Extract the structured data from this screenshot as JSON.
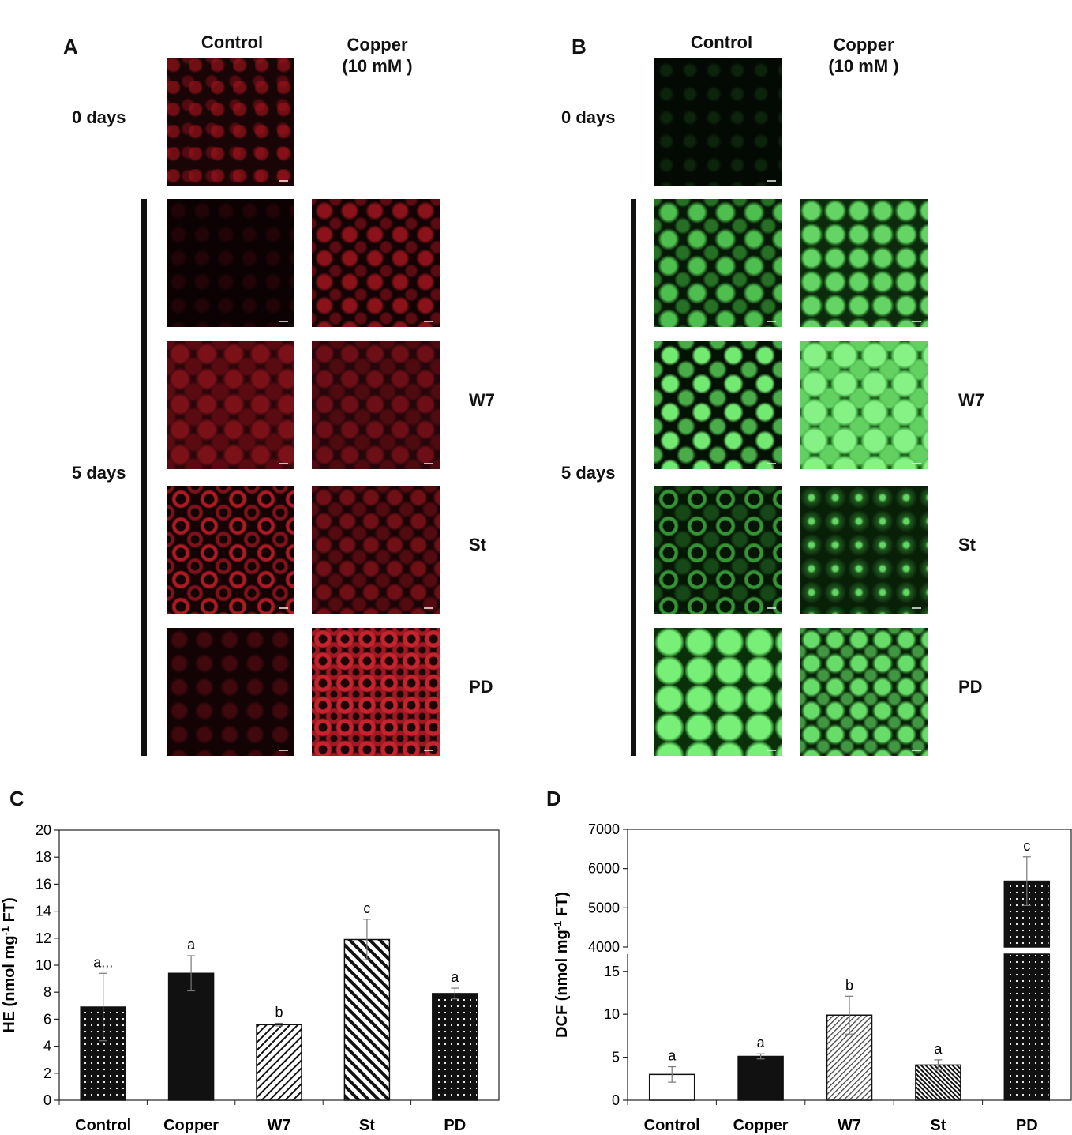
{
  "panel_a": {
    "letter": "A",
    "columns": [
      "Control",
      "Copper",
      "(10 mM )"
    ],
    "row_0": "0 days",
    "row_5": "5 days",
    "treatments": [
      "W7",
      "St",
      "PD"
    ],
    "channel_color": "#c0141e"
  },
  "panel_b": {
    "letter": "B",
    "columns": [
      "Control",
      "Copper",
      "(10 mM )"
    ],
    "row_0": "0 days",
    "row_5": "5 days",
    "treatments": [
      "W7",
      "St",
      "PD"
    ],
    "channel_color": "#3ad43a"
  },
  "chart_data": [
    {
      "panel": "C",
      "type": "bar",
      "ylabel": "HE (nmol mg-1 FT)",
      "ylim": [
        0,
        20
      ],
      "yticks": [
        0,
        2,
        4,
        6,
        8,
        10,
        12,
        14,
        16,
        18,
        20
      ],
      "categories": [
        "Control",
        "Copper",
        "W7",
        "St",
        "PD"
      ],
      "values": [
        6.9,
        9.4,
        5.6,
        11.9,
        7.9
      ],
      "errors": [
        2.5,
        1.3,
        0.1,
        1.5,
        0.4
      ],
      "letters": [
        "a...",
        "a",
        "b",
        "c",
        "a"
      ],
      "fills": [
        "dots",
        "solid",
        "diag-thin",
        "diag-thick",
        "dots"
      ]
    },
    {
      "panel": "D",
      "type": "bar",
      "ylabel": "DCF (nmol mg-1 FT)",
      "broken_axis": true,
      "ylim_lower": [
        0,
        17
      ],
      "ylim_upper": [
        4000,
        7000
      ],
      "yticks_lower": [
        0,
        5,
        10,
        15
      ],
      "yticks_upper": [
        4000,
        5000,
        6000,
        7000
      ],
      "categories": [
        "Control",
        "Copper",
        "W7",
        "St",
        "PD"
      ],
      "values": [
        3.0,
        5.1,
        9.9,
        4.1,
        5680
      ],
      "errors": [
        0.9,
        0.3,
        2.2,
        0.6,
        620
      ],
      "letters": [
        "a",
        "a",
        "b",
        "a",
        "c"
      ],
      "fills": [
        "white",
        "solid",
        "diag-thin-gray",
        "diag-dense",
        "dots"
      ]
    }
  ]
}
